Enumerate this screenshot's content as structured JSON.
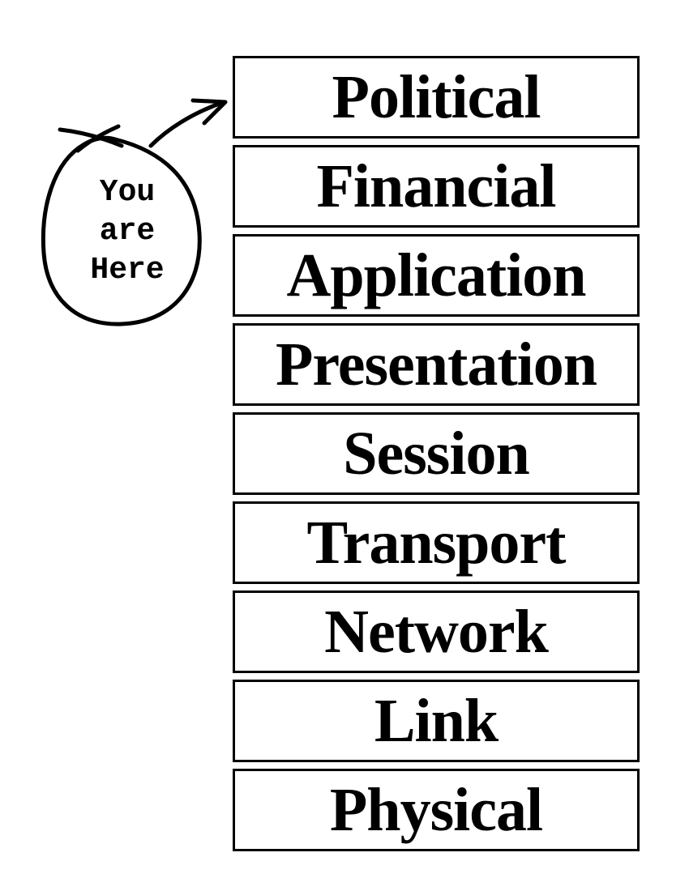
{
  "layers": [
    "Political",
    "Financial",
    "Application",
    "Presentation",
    "Session",
    "Transport",
    "Network",
    "Link",
    "Physical"
  ],
  "marker": {
    "lines": [
      "You",
      "are",
      "Here"
    ],
    "points_to": "Political"
  },
  "colors": {
    "ink": "#000000",
    "background": "#ffffff"
  }
}
